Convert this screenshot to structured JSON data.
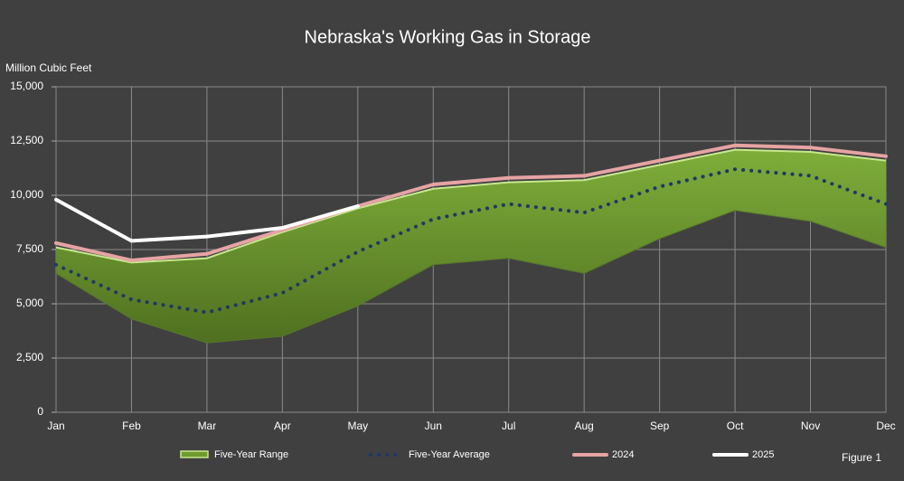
{
  "chart_data": {
    "type": "line",
    "title": "Nebraska's Working Gas in Storage",
    "y_label": "Million Cubic Feet",
    "annotation": "Figure 1",
    "categories": [
      "Jan",
      "Feb",
      "Mar",
      "Apr",
      "May",
      "Jun",
      "Jul",
      "Aug",
      "Sep",
      "Oct",
      "Nov",
      "Dec"
    ],
    "ylim": [
      0,
      15000
    ],
    "yticks": [
      0,
      {
        "value": 2500,
        "label": "2,500"
      },
      {
        "value": 5000,
        "label": "5,000"
      },
      {
        "value": 7500,
        "label": "7,500"
      },
      {
        "value": 10000,
        "label": "10,000"
      },
      {
        "value": 12500,
        "label": "12,500"
      },
      {
        "value": 15000,
        "label": "15,000"
      }
    ],
    "grid": true,
    "legend": "bottom",
    "series": [
      {
        "name": "Five-Year Range",
        "kind": "range",
        "color": "#6f9a2e",
        "high": [
          7600,
          6900,
          7100,
          8300,
          9400,
          10300,
          10600,
          10700,
          11400,
          12100,
          12000,
          11600
        ],
        "low": [
          6400,
          4300,
          3200,
          3500,
          4900,
          6800,
          7100,
          6400,
          8000,
          9300,
          8800,
          7600
        ]
      },
      {
        "name": "Five-Year Average",
        "kind": "dotted",
        "color": "#1f3864",
        "values": [
          6800,
          5200,
          4600,
          5500,
          7400,
          8900,
          9600,
          9200,
          10400,
          11200,
          10900,
          9600
        ]
      },
      {
        "name": "2024",
        "kind": "line",
        "color": "#e6a3a3",
        "values": [
          7800,
          7000,
          7300,
          8400,
          9500,
          10500,
          10800,
          10900,
          11600,
          12300,
          12200,
          11800
        ]
      },
      {
        "name": "2025",
        "kind": "line",
        "color": "#ffffff",
        "values": [
          9800,
          7900,
          8100,
          8500,
          9500,
          null,
          null,
          null,
          null,
          null,
          null,
          null
        ]
      }
    ]
  }
}
